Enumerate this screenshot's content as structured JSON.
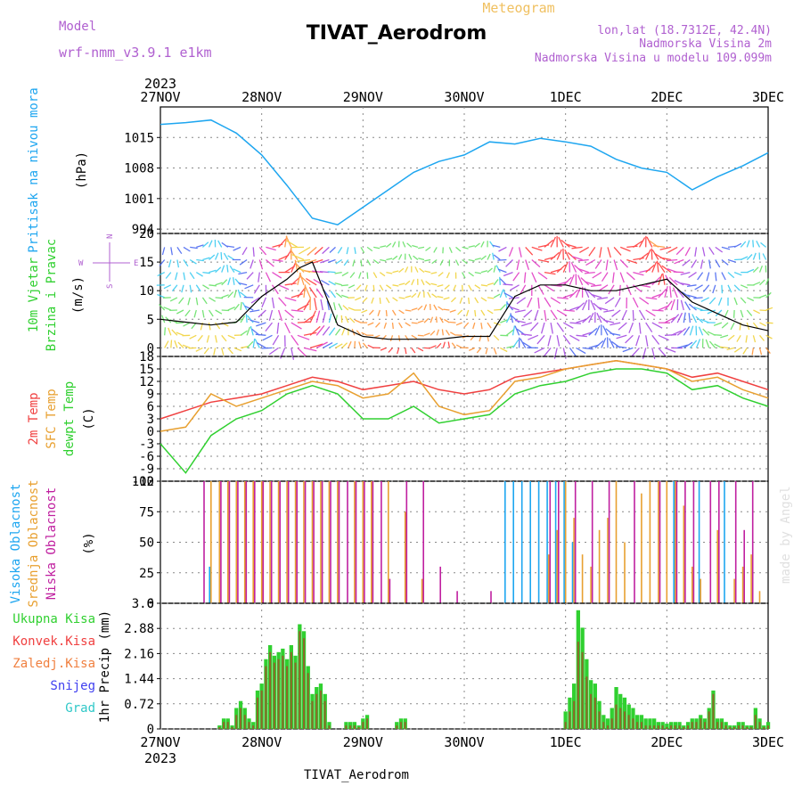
{
  "header": {
    "model_label": "Model",
    "model_name": "wrf-nmm_v3.9.1 e1km",
    "title": "TIVAT_Aerodrom",
    "meteogram": "Meteogram",
    "lonlat": "lon,lat (18.7312E, 42.4N)",
    "elev": "Nadmorska Visina 2m",
    "model_elev": "Nadmorska Visina u modelu 109.099m",
    "footer_station": "TIVAT_Aerodrom",
    "credit": "made by Angel"
  },
  "colors": {
    "pressure": "#1ea6f0",
    "temp2m": "#f04040",
    "sfc_temp": "#e8a030",
    "dewpt": "#30d030",
    "cloud_high": "#1ea6f0",
    "cloud_mid": "#e8a030",
    "cloud_low": "#c020a0",
    "precip_total": "#30d030",
    "precip_conv": "#f04040",
    "precip_frz": "#f08040",
    "snow": "#4040f0",
    "grad": "#30c8c8",
    "compass": "#b060d0"
  },
  "chart_data": [
    {
      "type": "line",
      "name": "pressure",
      "ylabel_title": "Pritisak na nivou mora",
      "ylabel": "(hPa)",
      "ylim": [
        993,
        1022
      ],
      "yticks": [
        994,
        1001,
        1008,
        1015
      ],
      "x_hours": [
        0,
        6,
        12,
        18,
        24,
        30,
        36,
        42,
        48,
        54,
        60,
        66,
        72,
        78,
        84,
        90,
        96,
        102,
        108,
        114,
        120,
        126,
        132,
        138,
        144
      ],
      "values": [
        1018,
        1018.4,
        1019,
        1016,
        1011,
        1004,
        996.5,
        995,
        999,
        1003,
        1007,
        1009.5,
        1011,
        1014,
        1013.5,
        1014.8,
        1014,
        1013,
        1010,
        1008,
        1007,
        1003,
        1006,
        1008.5,
        1011.5
      ]
    },
    {
      "type": "line",
      "name": "wind",
      "ylabel_title": [
        "10m Vjetar",
        "Brzina i Pravac"
      ],
      "ylabel": "(m/s)",
      "ylim": [
        -1.5,
        20
      ],
      "yticks": [
        0,
        5,
        10,
        15,
        20
      ],
      "compass": {
        "north": "N",
        "south": "S",
        "east": "E",
        "west": "W"
      },
      "x_hours": [
        0,
        6,
        12,
        18,
        24,
        30,
        33,
        36,
        42,
        48,
        54,
        60,
        66,
        72,
        78,
        84,
        90,
        96,
        102,
        108,
        114,
        120,
        126,
        132,
        138,
        144
      ],
      "values": [
        5,
        4.5,
        4,
        4.5,
        9,
        12,
        14,
        15,
        4,
        2,
        1.5,
        1.5,
        1.5,
        2,
        2,
        9,
        11,
        11,
        10,
        10,
        11,
        12,
        8,
        6,
        4,
        3
      ]
    },
    {
      "type": "line",
      "name": "temperature",
      "ylabel_title": [
        "2m Temp",
        "SFC Temp",
        "dewpt Temp"
      ],
      "ylabel": "(C)",
      "ylim": [
        -12,
        18
      ],
      "yticks": [
        -12,
        -9,
        -6,
        -3,
        0,
        3,
        6,
        9,
        12,
        15,
        18
      ],
      "x_hours": [
        0,
        6,
        12,
        18,
        24,
        30,
        36,
        42,
        48,
        54,
        60,
        66,
        72,
        78,
        84,
        90,
        96,
        102,
        108,
        114,
        120,
        126,
        132,
        138,
        144
      ],
      "series": [
        {
          "name": "2m Temp",
          "key": "temp2m",
          "values": [
            3,
            5,
            7,
            8,
            9,
            11,
            13,
            12,
            10,
            11,
            12,
            10,
            9,
            10,
            13,
            14,
            15,
            16,
            17,
            16,
            15,
            13,
            14,
            12,
            10
          ]
        },
        {
          "name": "SFC Temp",
          "key": "sfc_temp",
          "values": [
            0,
            1,
            9,
            6,
            8,
            10,
            12,
            11,
            8,
            9,
            14,
            6,
            4,
            5,
            12,
            13,
            15,
            16,
            17,
            16,
            15,
            12,
            13,
            10,
            8
          ]
        },
        {
          "name": "dewpt Temp",
          "key": "dewpt",
          "values": [
            -3,
            -10,
            -1,
            3,
            5,
            9,
            11,
            9,
            3,
            3,
            6,
            2,
            3,
            4,
            9,
            11,
            12,
            14,
            15,
            15,
            14,
            10,
            11,
            8,
            6
          ]
        }
      ]
    },
    {
      "type": "bar",
      "name": "cloud",
      "ylabel_title": [
        "Visoka Oblacnost",
        "Srednja Oblacnost",
        "Niska Oblacnost"
      ],
      "ylabel": "(%)",
      "ylim": [
        0,
        100
      ],
      "yticks": [
        0,
        25,
        50,
        75,
        100
      ],
      "x_hours": [
        10,
        12,
        14,
        16,
        18,
        20,
        22,
        24,
        26,
        28,
        30,
        32,
        34,
        36,
        38,
        40,
        42,
        44,
        46,
        48,
        50,
        52,
        54,
        58,
        62,
        66,
        70,
        74,
        78,
        82,
        84,
        86,
        88,
        90,
        92,
        94,
        96,
        98,
        100,
        102,
        104,
        106,
        108,
        110,
        112,
        114,
        116,
        118,
        120,
        122,
        124,
        126,
        128,
        130,
        132,
        134,
        136,
        138,
        140,
        142
      ],
      "series": [
        {
          "name": "Visoka Oblacnost",
          "key": "cloud_high",
          "values": [
            0,
            30,
            0,
            0,
            0,
            0,
            0,
            0,
            0,
            0,
            0,
            0,
            0,
            0,
            0,
            0,
            0,
            0,
            0,
            0,
            0,
            0,
            0,
            0,
            0,
            0,
            0,
            0,
            0,
            100,
            100,
            100,
            100,
            100,
            100,
            100,
            100,
            50,
            0,
            0,
            0,
            0,
            0,
            0,
            0,
            0,
            0,
            0,
            0,
            100,
            0,
            0,
            100,
            0,
            0,
            100,
            0,
            0,
            0,
            0
          ]
        },
        {
          "name": "Srednja Oblacnost",
          "key": "cloud_mid",
          "values": [
            0,
            100,
            100,
            100,
            100,
            100,
            100,
            100,
            100,
            100,
            100,
            100,
            100,
            100,
            100,
            100,
            100,
            0,
            100,
            100,
            100,
            0,
            100,
            75,
            20,
            0,
            0,
            0,
            0,
            0,
            0,
            0,
            0,
            0,
            40,
            60,
            100,
            70,
            40,
            30,
            60,
            70,
            100,
            50,
            0,
            90,
            100,
            100,
            100,
            100,
            80,
            30,
            20,
            0,
            60,
            0,
            20,
            30,
            40,
            10
          ]
        },
        {
          "name": "Niska Oblacnost",
          "key": "cloud_low",
          "values": [
            100,
            0,
            100,
            100,
            100,
            100,
            100,
            100,
            100,
            100,
            100,
            100,
            100,
            100,
            100,
            100,
            100,
            100,
            100,
            100,
            100,
            100,
            20,
            100,
            100,
            30,
            10,
            0,
            10,
            0,
            0,
            0,
            0,
            0,
            100,
            100,
            0,
            100,
            0,
            100,
            0,
            100,
            0,
            0,
            100,
            0,
            0,
            100,
            0,
            100,
            100,
            100,
            0,
            100,
            100,
            0,
            100,
            60,
            100,
            0
          ]
        }
      ]
    },
    {
      "type": "bar",
      "name": "precip",
      "ylabel_title": [
        "Ukupna Kisa",
        "Konvek.Kisa",
        "Zaledj.Kisa",
        "Snijeg",
        "Grad"
      ],
      "ylabel": "1hr Precip (mm)",
      "ylim": [
        0,
        3.6
      ],
      "yticks": [
        0,
        0.72,
        1.44,
        2.16,
        2.88,
        3.6
      ],
      "ytick_labels": [
        "0",
        "0.72",
        "1.44",
        "2.16",
        "2.88",
        "3.6"
      ],
      "x_hours": [
        14,
        15,
        16,
        17,
        18,
        19,
        20,
        21,
        22,
        23,
        24,
        25,
        26,
        27,
        28,
        29,
        30,
        31,
        32,
        33,
        34,
        35,
        36,
        37,
        38,
        39,
        40,
        44,
        45,
        46,
        47,
        48,
        49,
        56,
        57,
        58,
        96,
        97,
        98,
        99,
        100,
        101,
        102,
        103,
        104,
        105,
        106,
        107,
        108,
        109,
        110,
        111,
        112,
        113,
        114,
        115,
        116,
        117,
        118,
        119,
        120,
        121,
        122,
        123,
        124,
        125,
        126,
        127,
        128,
        129,
        130,
        131,
        132,
        133,
        134,
        135,
        136,
        137,
        138,
        139,
        140,
        141,
        142,
        143,
        144
      ],
      "series": [
        {
          "name": "Ukupna Kisa",
          "key": "precip_total",
          "values": [
            0.1,
            0.3,
            0.3,
            0.1,
            0.6,
            0.8,
            0.6,
            0.3,
            0.2,
            1.1,
            1.3,
            2.0,
            2.4,
            2.1,
            2.2,
            2.3,
            2.0,
            2.4,
            2.1,
            3.0,
            2.8,
            1.8,
            1.0,
            1.2,
            1.3,
            1.0,
            0.2,
            0.2,
            0.2,
            0.2,
            0.1,
            0.3,
            0.4,
            0.2,
            0.3,
            0.3,
            0.5,
            0.9,
            1.3,
            3.4,
            2.9,
            2.0,
            1.4,
            1.3,
            0.8,
            0.4,
            0.3,
            0.6,
            1.2,
            1.0,
            0.9,
            0.7,
            0.6,
            0.4,
            0.4,
            0.3,
            0.3,
            0.3,
            0.2,
            0.2,
            0.15,
            0.2,
            0.2,
            0.2,
            0.1,
            0.2,
            0.3,
            0.3,
            0.4,
            0.3,
            0.6,
            1.1,
            0.3,
            0.3,
            0.2,
            0.1,
            0.1,
            0.2,
            0.2,
            0.1,
            0.1,
            0.6,
            0.3,
            0.1,
            0.2
          ]
        },
        {
          "name": "Konvek.Kisa",
          "key": "precip_conv",
          "values": [
            0.05,
            0.2,
            0.2,
            0.05,
            0.4,
            0.6,
            0.4,
            0.2,
            0.1,
            0.9,
            1.1,
            1.8,
            2.2,
            1.9,
            2.0,
            2.1,
            1.8,
            2.2,
            1.9,
            2.8,
            2.6,
            1.6,
            0.8,
            1.0,
            1.1,
            0.8,
            0.1,
            0.1,
            0.1,
            0.1,
            0.05,
            0.2,
            0.3,
            0.1,
            0.2,
            0.2,
            0.2,
            0.5,
            0.8,
            2.5,
            2.2,
            1.5,
            1.0,
            0.9,
            0.5,
            0.2,
            0.1,
            0.3,
            0.7,
            0.6,
            0.5,
            0.4,
            0.3,
            0.2,
            0.2,
            0.1,
            0.1,
            0.1,
            0.1,
            0.1,
            0.05,
            0.1,
            0.1,
            0.1,
            0.05,
            0.1,
            0.2,
            0.2,
            0.3,
            0.2,
            0.5,
            1.0,
            0.2,
            0.2,
            0.1,
            0.05,
            0.05,
            0.1,
            0.1,
            0.05,
            0.05,
            0.4,
            0.2,
            0.05,
            0.1
          ]
        },
        {
          "name": "Zaledj.Kisa",
          "key": "precip_frz",
          "values": []
        },
        {
          "name": "Snijeg",
          "key": "snow",
          "values": []
        },
        {
          "name": "Grad",
          "key": "grad",
          "values": []
        }
      ]
    }
  ],
  "time_axis": {
    "x_hours": [
      0,
      24,
      48,
      72,
      96,
      120,
      144
    ],
    "labels": [
      "27NOV",
      "28NOV",
      "29NOV",
      "30NOV",
      "1DEC",
      "2DEC",
      "3DEC"
    ],
    "year": "2023"
  }
}
